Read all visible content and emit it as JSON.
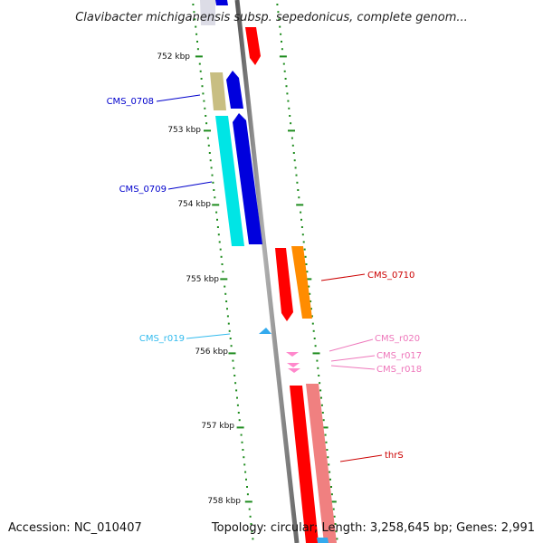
{
  "title": "Clavibacter michiganensis subsp. sepedonicus, complete genom...",
  "footer": {
    "accession": "Accession: NC_010407",
    "summary": "Topology: circular; Length: 3,258,645 bp; Genes: 2,991"
  },
  "colors": {
    "backbone": "#808080",
    "ticks": "#1e8c1e",
    "gene_blue": "#0000dd",
    "gene_cyan": "#00e5e5",
    "gene_tan": "#c8be82",
    "gene_red": "#ff0000",
    "gene_orange": "#ff8c00",
    "gene_pink": "#f08080",
    "rna_pink": "#ff88cc",
    "trna_sky": "#33aaee",
    "label_blue": "#0000cc",
    "label_red": "#cc0000",
    "label_pink": "#ee77bb",
    "label_sky": "#33bbee"
  },
  "ticks": [
    "752 kbp",
    "753 kbp",
    "754 kbp",
    "755 kbp",
    "756 kbp",
    "757 kbp",
    "758 kbp"
  ],
  "labels": {
    "cms_0708": "CMS_0708",
    "cms_0709": "CMS_0709",
    "cms_0710": "CMS_0710",
    "cms_r019": "CMS_r019",
    "cms_r020": "CMS_r020",
    "cms_r017": "CMS_r017",
    "cms_r018": "CMS_r018",
    "thrs": "thrS"
  }
}
